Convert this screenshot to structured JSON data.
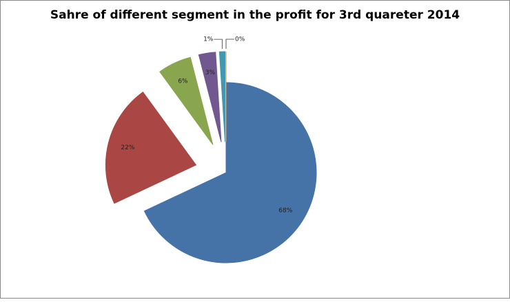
{
  "chart_data": {
    "type": "pie",
    "title": "Sahre of different segment in the profit for 3rd quareter 2014",
    "values": [
      68,
      22,
      6,
      3,
      1,
      0
    ],
    "value_labels": [
      "68%",
      "22%",
      "6%",
      "3%",
      "1%",
      "0%"
    ],
    "colors": [
      "#4572a7",
      "#aa4643",
      "#89a54e",
      "#71588f",
      "#4198af",
      "#db843d"
    ],
    "start_angle": 0,
    "direction": "clockwise",
    "exploded": true
  }
}
